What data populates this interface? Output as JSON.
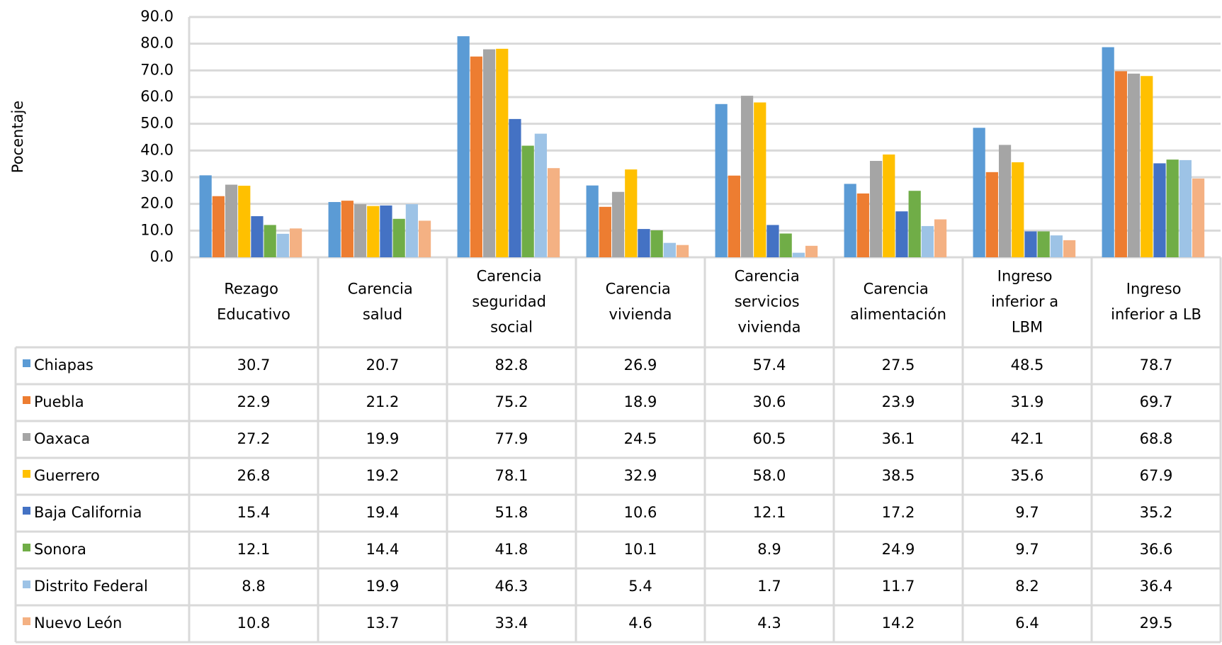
{
  "chart_data": {
    "type": "bar",
    "y_label": "Pocentaje",
    "categories": [
      "Rezago Educativo",
      "Carencia salud",
      "Carencia seguridad social",
      "Carencia vivienda",
      "Carencia servicios vivienda",
      "Carencia alimentación",
      "Ingreso inferior a LBM",
      "Ingreso inferior a LB"
    ],
    "series": [
      {
        "name": "Chiapas",
        "color": "#5b9bd5",
        "values": [
          30.7,
          20.7,
          82.8,
          26.9,
          57.4,
          27.5,
          48.5,
          78.7
        ],
        "value_labels": [
          "30.7",
          "20.7",
          "82.8",
          "26.9",
          "57.4",
          "27.5",
          "48.5",
          "78.7"
        ]
      },
      {
        "name": "Puebla",
        "color": "#ed7d31",
        "values": [
          22.9,
          21.2,
          75.2,
          18.9,
          30.6,
          23.9,
          31.9,
          69.7
        ],
        "value_labels": [
          "22.9",
          "21.2",
          "75.2",
          "18.9",
          "30.6",
          "23.9",
          "31.9",
          "69.7"
        ]
      },
      {
        "name": "Oaxaca",
        "color": "#a5a5a5",
        "values": [
          27.2,
          19.9,
          77.9,
          24.5,
          60.5,
          36.1,
          42.1,
          68.8
        ],
        "value_labels": [
          "27.2",
          "19.9",
          "77.9",
          "24.5",
          "60.5",
          "36.1",
          "42.1",
          "68.8"
        ]
      },
      {
        "name": "Guerrero",
        "color": "#ffc000",
        "values": [
          26.8,
          19.2,
          78.1,
          32.9,
          58.0,
          38.5,
          35.6,
          67.9
        ],
        "value_labels": [
          "26.8",
          "19.2",
          "78.1",
          "32.9",
          "58.0",
          "38.5",
          "35.6",
          "67.9"
        ]
      },
      {
        "name": "Baja California",
        "color": "#4472c4",
        "values": [
          15.4,
          19.4,
          51.8,
          10.6,
          12.1,
          17.2,
          9.7,
          35.2
        ],
        "value_labels": [
          "15.4",
          "19.4",
          "51.8",
          "10.6",
          "12.1",
          "17.2",
          "9.7",
          "35.2"
        ]
      },
      {
        "name": "Sonora",
        "color": "#70ad47",
        "values": [
          12.1,
          14.4,
          41.8,
          10.1,
          8.9,
          24.9,
          9.7,
          36.6
        ],
        "value_labels": [
          "12.1",
          "14.4",
          "41.8",
          "10.1",
          "8.9",
          "24.9",
          "9.7",
          "36.6"
        ]
      },
      {
        "name": "Distrito Federal",
        "color": "#9dc3e6",
        "values": [
          8.8,
          19.9,
          46.3,
          5.4,
          1.7,
          11.7,
          8.2,
          36.4
        ],
        "value_labels": [
          "8.8",
          "19.9",
          "46.3",
          "5.4",
          "1.7",
          "11.7",
          "8.2",
          "36.4"
        ]
      },
      {
        "name": "Nuevo León",
        "color": "#f4b183",
        "values": [
          10.8,
          13.7,
          33.4,
          4.6,
          4.3,
          14.2,
          6.4,
          29.5
        ],
        "value_labels": [
          "10.8",
          "13.7",
          "33.4",
          "4.6",
          "4.3",
          "14.2",
          "6.4",
          "29.5"
        ]
      }
    ],
    "ylim": [
      0,
      90
    ],
    "yticks": [
      {
        "value": 0,
        "label": "0.0"
      },
      {
        "value": 10,
        "label": "10.0"
      },
      {
        "value": 20,
        "label": "20.0"
      },
      {
        "value": 30,
        "label": "30.0"
      },
      {
        "value": 40,
        "label": "40.0"
      },
      {
        "value": 50,
        "label": "50.0"
      },
      {
        "value": 60,
        "label": "60.0"
      },
      {
        "value": 70,
        "label": "70.0"
      },
      {
        "value": 80,
        "label": "80.0"
      },
      {
        "value": 90,
        "label": "90.0"
      }
    ],
    "grid": true
  }
}
